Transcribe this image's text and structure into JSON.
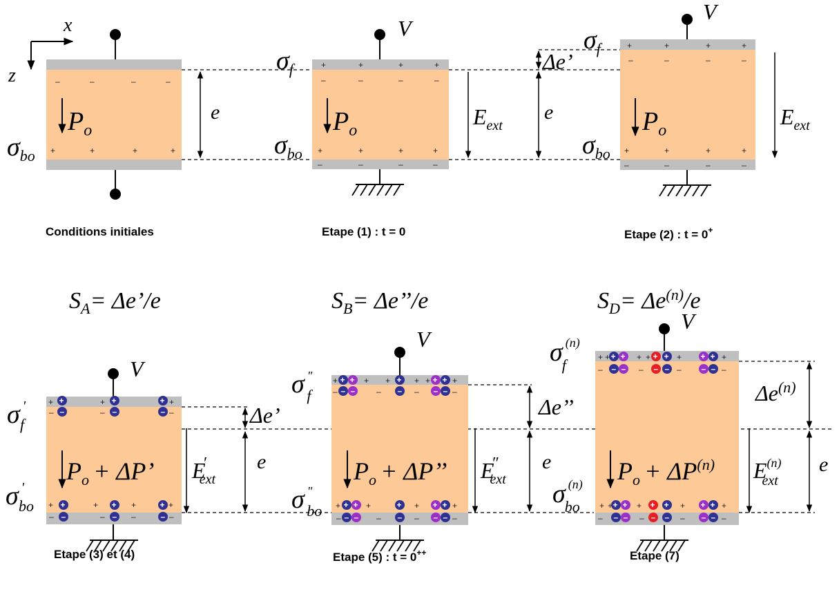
{
  "captions": {
    "c0": "Conditions initiales",
    "c1": "Etape (1) : t = 0",
    "c2": "Etape (2) : t = 0",
    "c2_sup": "+",
    "c3": "Etape (3) et (4)",
    "c5": "Etape (5) : t = 0",
    "c5_sup": "++",
    "c7": "Etape (7)"
  },
  "strains": {
    "a_s": "S",
    "a_sub": "A",
    "a_eq": "= Δe’/e",
    "b_s": "S",
    "b_sub": "B",
    "b_eq": "= Δe’’/e",
    "d_s": "S",
    "d_sub": "D",
    "d_eq1": "= Δe",
    "d_sup": "(n)",
    "d_eq2": "/e"
  },
  "labels": {
    "x": "x",
    "z": "z",
    "V": "V",
    "e": "e",
    "sigma": "σ",
    "sub_f": "f",
    "sub_bo": "bo",
    "P": "P",
    "sub_o": "o",
    "E": "E",
    "sub_ext": "ext",
    "delta_e1": "Δe’",
    "delta_e1_prime": "Δe’",
    "delta_e2": "Δe’’",
    "delta_e_n": "Δe",
    "sup_n": "(n)",
    "prime": "'",
    "dprime": "\"",
    "E_prime": "′",
    "E_dprime": "″",
    "P_plus_1": "+ ΔP’",
    "P_plus_2": "+ ΔP’’",
    "P_plus_n": "+ ΔP",
    "plus": "+",
    "minus": "–"
  },
  "colors": {
    "film": "#fdc996",
    "electrode": "#bfbfbf",
    "blue_charge": "#2e3192",
    "violet_charge": "#9b30c8",
    "red_charge": "#e81e25"
  }
}
